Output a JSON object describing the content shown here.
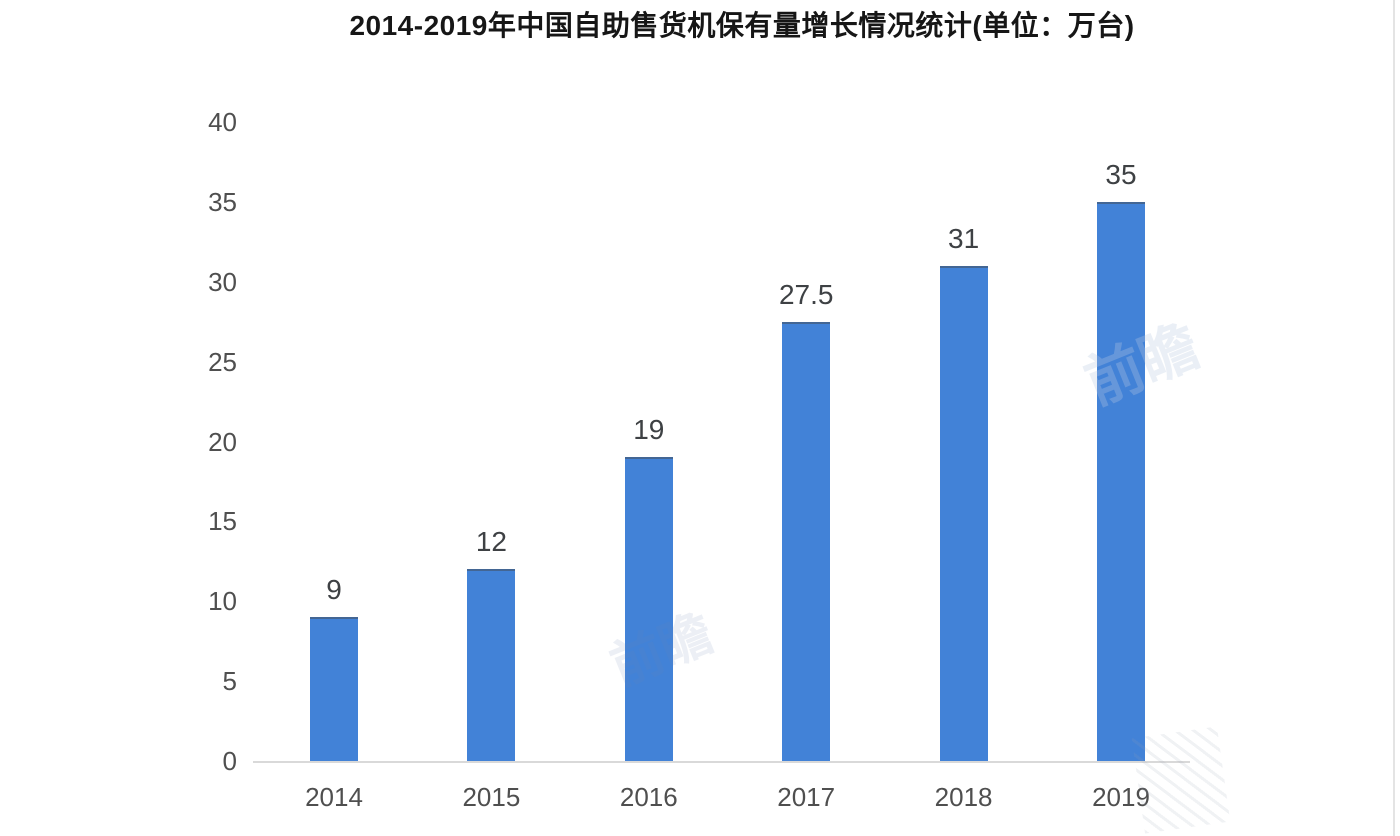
{
  "chart_data": {
    "type": "bar",
    "title": "2014-2019年中国自助售货机保有量增长情况统计(单位：万台)",
    "categories": [
      "2014",
      "2015",
      "2016",
      "2017",
      "2018",
      "2019"
    ],
    "values": [
      9,
      12,
      19,
      27.5,
      31,
      35
    ],
    "value_labels": [
      "9",
      "12",
      "19",
      "27.5",
      "31",
      "35"
    ],
    "unit": "万台",
    "ylim": [
      0,
      40
    ],
    "yticks": [
      0,
      5,
      10,
      15,
      20,
      25,
      30,
      35,
      40
    ],
    "xlabel": "",
    "ylabel": "",
    "grid": false,
    "legend": null,
    "bar_color": "#4282d7",
    "bar_top_edge_color": "#46505c",
    "axis_line_color": "#d9d9d9",
    "tick_label_color": "#4f4f4f",
    "data_label_color": "#3e4144",
    "title_color": "#161616"
  },
  "watermark": {
    "glyph": "前瞻"
  }
}
